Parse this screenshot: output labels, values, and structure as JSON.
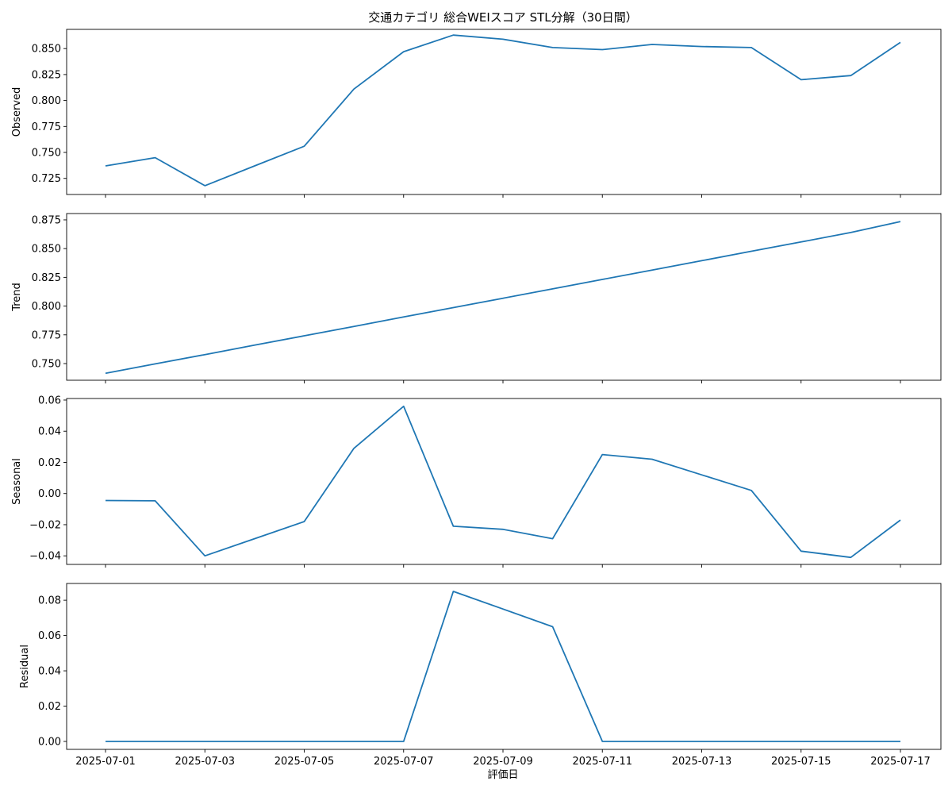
{
  "chart_data": {
    "type": "line",
    "title": "交通カテゴリ 総合WEIスコア STL分解（30日間）",
    "xlabel": "評価日",
    "x": [
      "2025-07-01",
      "2025-07-02",
      "2025-07-03",
      "2025-07-04",
      "2025-07-05",
      "2025-07-06",
      "2025-07-07",
      "2025-07-08",
      "2025-07-09",
      "2025-07-10",
      "2025-07-11",
      "2025-07-12",
      "2025-07-13",
      "2025-07-14",
      "2025-07-15",
      "2025-07-16",
      "2025-07-17"
    ],
    "xticks": [
      "2025-07-01",
      "2025-07-03",
      "2025-07-05",
      "2025-07-07",
      "2025-07-09",
      "2025-07-11",
      "2025-07-13",
      "2025-07-15",
      "2025-07-17"
    ],
    "line_color": "#1f77b4",
    "panels": [
      {
        "ylabel": "Observed",
        "ylim": [
          0.7095,
          0.8685
        ],
        "yticks": [
          0.725,
          0.75,
          0.775,
          0.8,
          0.825,
          0.85
        ],
        "ytick_labels": [
          "0.725",
          "0.750",
          "0.775",
          "0.800",
          "0.825",
          "0.850"
        ],
        "values": [
          0.737,
          0.745,
          0.718,
          0.737,
          0.756,
          0.811,
          0.847,
          0.863,
          0.859,
          0.851,
          0.849,
          0.854,
          0.852,
          0.851,
          0.82,
          0.824,
          0.856
        ]
      },
      {
        "ylabel": "Trend",
        "ylim": [
          0.7355,
          0.8805
        ],
        "yticks": [
          0.75,
          0.775,
          0.8,
          0.825,
          0.85,
          0.875
        ],
        "ytick_labels": [
          "0.750",
          "0.775",
          "0.800",
          "0.825",
          "0.850",
          "0.875"
        ],
        "values": [
          0.7415,
          0.7497,
          0.7578,
          0.766,
          0.7742,
          0.7823,
          0.7905,
          0.7987,
          0.8068,
          0.815,
          0.8232,
          0.8313,
          0.8395,
          0.8477,
          0.8558,
          0.864,
          0.8735
        ]
      },
      {
        "ylabel": "Seasonal",
        "ylim": [
          -0.0455,
          0.061
        ],
        "yticks": [
          -0.04,
          -0.02,
          0.0,
          0.02,
          0.04,
          0.06
        ],
        "ytick_labels": [
          "−0.04",
          "−0.02",
          "0.00",
          "0.02",
          "0.04",
          "0.06"
        ],
        "values": [
          -0.0045,
          -0.0047,
          -0.04,
          -0.029,
          -0.018,
          0.029,
          0.056,
          -0.021,
          -0.023,
          -0.029,
          0.025,
          0.022,
          0.012,
          0.002,
          -0.037,
          -0.041,
          -0.017
        ]
      },
      {
        "ylabel": "Residual",
        "ylim": [
          -0.0045,
          0.0895
        ],
        "yticks": [
          0.0,
          0.02,
          0.04,
          0.06,
          0.08
        ],
        "ytick_labels": [
          "0.00",
          "0.02",
          "0.04",
          "0.06",
          "0.08"
        ],
        "values": [
          0,
          0,
          0,
          0,
          0,
          0,
          0,
          0.085,
          0.075,
          0.065,
          0,
          0,
          0,
          0,
          0,
          0,
          0
        ]
      }
    ]
  }
}
